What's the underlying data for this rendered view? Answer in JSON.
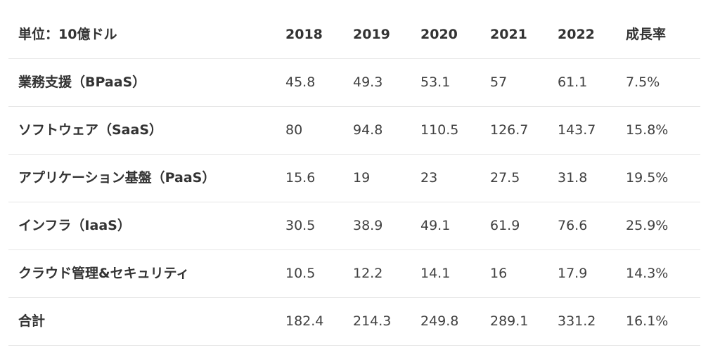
{
  "chart_data": {
    "type": "table",
    "unit_label": "単位：10億ドル",
    "columns": [
      "2018",
      "2019",
      "2020",
      "2021",
      "2022"
    ],
    "growth_label": "成長率",
    "rows": [
      {
        "label": "業務支援（BPaaS）",
        "values": [
          "45.8",
          "49.3",
          "53.1",
          "57",
          "61.1"
        ],
        "growth": "7.5%"
      },
      {
        "label": "ソフトウェア（SaaS）",
        "values": [
          "80",
          "94.8",
          "110.5",
          "126.7",
          "143.7"
        ],
        "growth": "15.8%"
      },
      {
        "label": "アプリケーション基盤（PaaS）",
        "values": [
          "15.6",
          "19",
          "23",
          "27.5",
          "31.8"
        ],
        "growth": "19.5%"
      },
      {
        "label": "インフラ（IaaS）",
        "values": [
          "30.5",
          "38.9",
          "49.1",
          "61.9",
          "76.6"
        ],
        "growth": "25.9%"
      },
      {
        "label": "クラウド管理&セキュリティ",
        "values": [
          "10.5",
          "12.2",
          "14.1",
          "16",
          "17.9"
        ],
        "growth": "14.3%"
      },
      {
        "label": "合計",
        "values": [
          "182.4",
          "214.3",
          "249.8",
          "289.1",
          "331.2"
        ],
        "growth": "16.1%"
      }
    ]
  }
}
